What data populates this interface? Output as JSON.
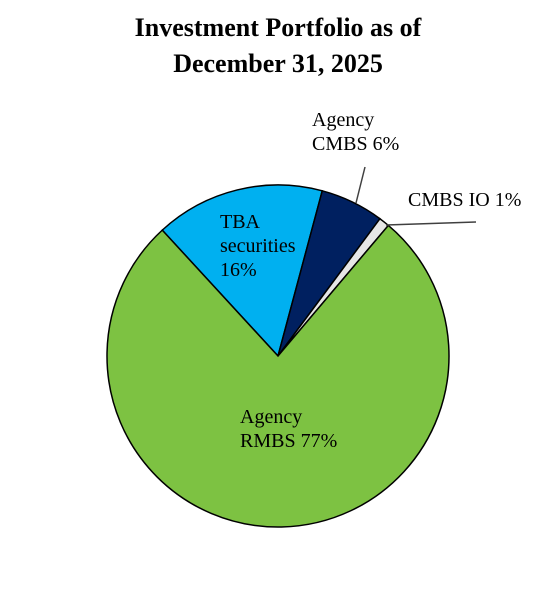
{
  "chart_data": {
    "type": "pie",
    "title": "Investment Portfolio as of December 31, 2025",
    "categories": [
      "TBA securities",
      "Agency CMBS",
      "CMBS IO",
      "Agency RMBS"
    ],
    "values": [
      16,
      6,
      1,
      77
    ],
    "value_labels": [
      "16%",
      "6%",
      "1%",
      "77%"
    ],
    "colors": [
      "#00b0f0",
      "#002060",
      "#e6e6e6",
      "#7dc242"
    ]
  }
}
